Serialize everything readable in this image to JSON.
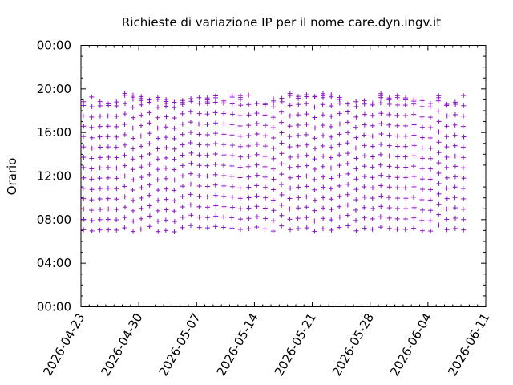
{
  "chart_data": {
    "type": "scatter",
    "title": "Richieste di variazione IP per il nome care.dyn.ingv.it",
    "xlabel": "",
    "ylabel": "Orario",
    "x_range": [
      "2026-04-23",
      "2026-06-11"
    ],
    "y_range_hours": [
      0,
      24
    ],
    "x_ticks": [
      "2026-04-23",
      "2026-04-30",
      "2026-05-07",
      "2026-05-14",
      "2026-05-21",
      "2026-05-28",
      "2026-06-04",
      "2026-06-11"
    ],
    "y_ticks": [
      "00:00",
      "04:00",
      "08:00",
      "12:00",
      "16:00",
      "20:00",
      "00:00"
    ],
    "y_tick_hours": [
      0,
      4,
      8,
      12,
      16,
      20,
      24
    ],
    "grid": false,
    "marker": "plus",
    "color": "#8c12c4",
    "series": [
      {
        "description": "Roughly hourly IP change requests each day, from about 07:00 to 19:00, drawn from 2026-04-23 to 2026-06-08",
        "first_date": "2026-04-23",
        "last_date": "2026-06-08",
        "first_hour": 7.0,
        "last_hour": 19.2,
        "step_hours": 0.95
      }
    ]
  }
}
